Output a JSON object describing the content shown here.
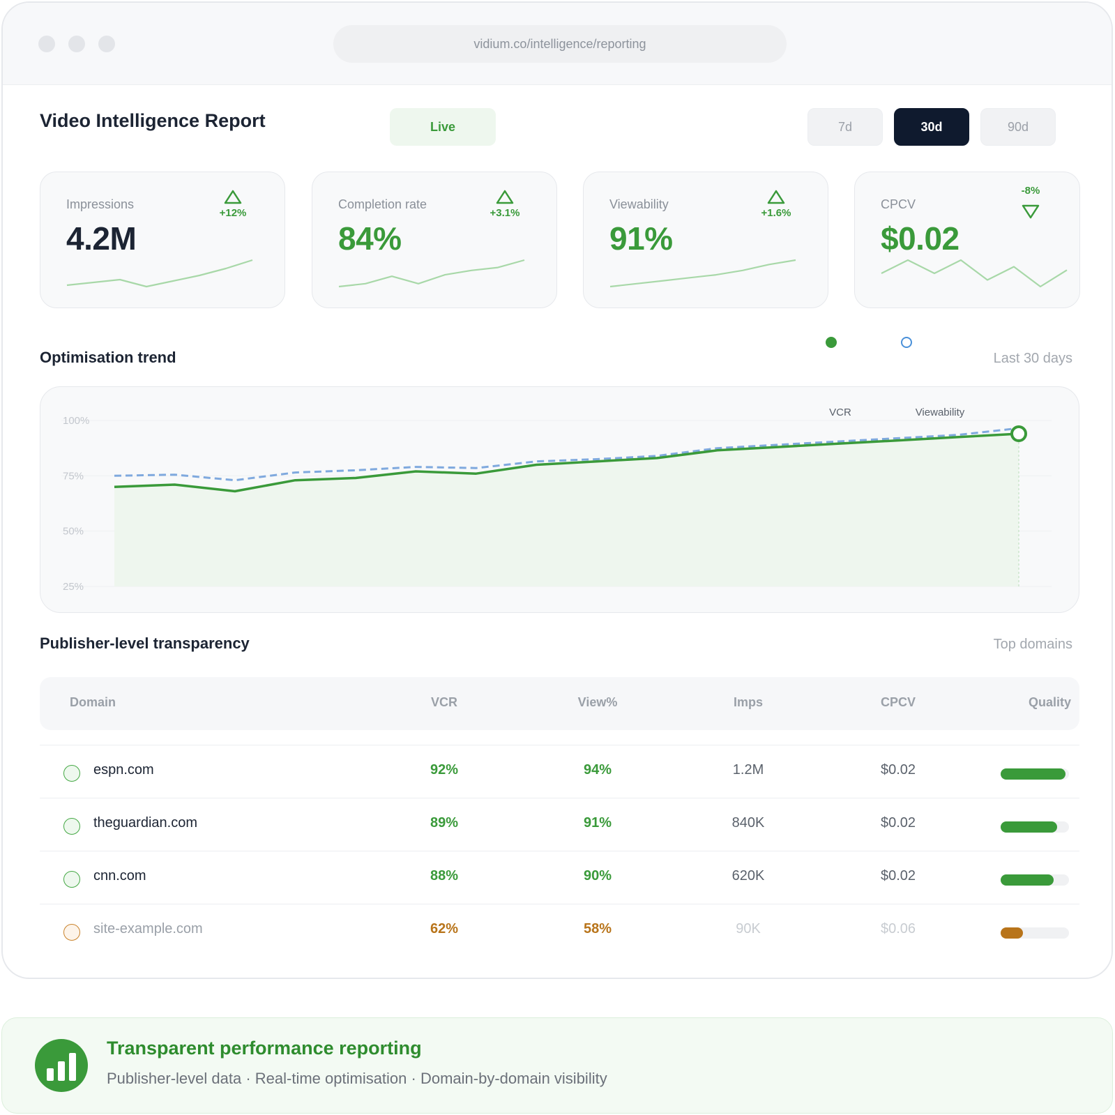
{
  "browser": {
    "url": "vidium.co/intelligence/reporting"
  },
  "header": {
    "title": "Video Intelligence Report",
    "status": "Live",
    "ranges": [
      "7d",
      "30d",
      "90d"
    ],
    "active_range": "30d"
  },
  "kpis": [
    {
      "label": "Impressions",
      "value": "4.2M",
      "delta": "+12%",
      "direction": "up",
      "value_color": "#1c2433",
      "spark": [
        2,
        4,
        6,
        1,
        5,
        9,
        14,
        20
      ]
    },
    {
      "label": "Completion rate",
      "value": "84%",
      "delta": "+3.1%",
      "direction": "up",
      "value_color": "#3a9a3a",
      "spark": [
        2,
        4,
        9,
        4,
        10,
        13,
        15,
        20
      ]
    },
    {
      "label": "Viewability",
      "value": "91%",
      "delta": "+1.6%",
      "direction": "up",
      "value_color": "#3a9a3a",
      "spark": [
        2,
        4,
        6,
        8,
        10,
        13,
        17,
        20
      ]
    },
    {
      "label": "CPCV",
      "value": "$0.02",
      "delta": "-8%",
      "direction": "down",
      "value_color": "#3a9a3a",
      "spark": [
        8,
        12,
        8,
        12,
        6,
        10,
        4,
        9
      ]
    }
  ],
  "trend": {
    "title": "Optimisation trend",
    "note": "Last 30 days",
    "legend": {
      "vcr_color": "#3a9a3a",
      "viewability_color": "#4a90d9"
    }
  },
  "chart_data": {
    "type": "line",
    "x": [
      1,
      2,
      3,
      4,
      5,
      6,
      7,
      8,
      9,
      10,
      11,
      12,
      13,
      14,
      15,
      16
    ],
    "series": [
      {
        "name": "VCR",
        "values": [
          70,
          71,
          68,
          73,
          74,
          77,
          76,
          80,
          81.5,
          83,
          86.5,
          88,
          89.5,
          91,
          92.5,
          94
        ]
      },
      {
        "name": "Viewability",
        "values": [
          75,
          75.5,
          73,
          76.5,
          77.5,
          79,
          78.5,
          81.5,
          82.5,
          84,
          87.5,
          89,
          90.5,
          92,
          93.5,
          96.5
        ]
      }
    ],
    "yticks": [
      "100%",
      "75%",
      "50%",
      "25%"
    ],
    "ylim": [
      25,
      100
    ],
    "grid": true
  },
  "publishers": {
    "title": "Publisher-level transparency",
    "note": "Top domains",
    "columns": [
      "Domain",
      "VCR",
      "View%",
      "Imps",
      "CPCV",
      "Quality"
    ],
    "rows": [
      {
        "domain": "espn.com",
        "vcr": "92%",
        "view": "94%",
        "imps": "1.2M",
        "cpcv": "$0.02",
        "quality": 0.95,
        "tone": "good"
      },
      {
        "domain": "theguardian.com",
        "vcr": "89%",
        "view": "91%",
        "imps": "840K",
        "cpcv": "$0.02",
        "quality": 0.83,
        "tone": "good"
      },
      {
        "domain": "cnn.com",
        "vcr": "88%",
        "view": "90%",
        "imps": "620K",
        "cpcv": "$0.02",
        "quality": 0.78,
        "tone": "good"
      },
      {
        "domain": "site-example.com",
        "vcr": "62%",
        "view": "58%",
        "imps": "90K",
        "cpcv": "$0.06",
        "quality": 0.33,
        "tone": "warn"
      }
    ]
  },
  "footer": {
    "title": "Transparent performance reporting",
    "subtitle": "Publisher-level data · Real-time optimisation · Domain-by-domain visibility"
  },
  "colors": {
    "green": "#3a9a3a",
    "blue": "#7fa9de",
    "warn": "#b8741a",
    "navy": "#0f1a2e"
  }
}
